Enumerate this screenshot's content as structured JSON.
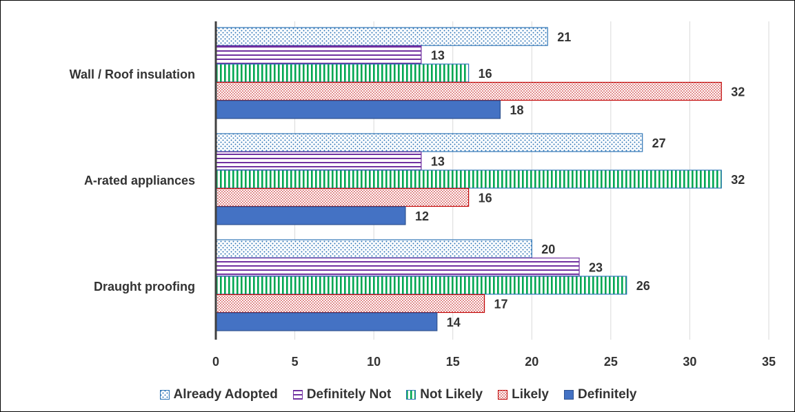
{
  "chart_data": {
    "type": "bar",
    "orientation": "horizontal",
    "title": "",
    "xlabel": "",
    "ylabel": "",
    "xlim": [
      0,
      35
    ],
    "x_ticks": [
      "0",
      "5",
      "10",
      "15",
      "20",
      "25",
      "30",
      "35"
    ],
    "grid": "vertical gridlines on",
    "legend_position": "bottom",
    "categories": [
      "Wall / Roof insulation",
      "A-rated appliances",
      "Draught proofing"
    ],
    "series": [
      {
        "name": "Already Adopted",
        "values": [
          21,
          27,
          20
        ],
        "color": "#2E75B6",
        "pattern": "dots"
      },
      {
        "name": "Definitely Not",
        "values": [
          13,
          13,
          23
        ],
        "color": "#7030A0",
        "pattern": "horizontal-lines"
      },
      {
        "name": "Not Likely",
        "values": [
          16,
          32,
          26
        ],
        "color": "#00A651",
        "pattern": "vertical-lines"
      },
      {
        "name": "Likely",
        "values": [
          32,
          16,
          17
        ],
        "color": "#C00000",
        "pattern": "dots"
      },
      {
        "name": "Definitely",
        "values": [
          18,
          12,
          14
        ],
        "color": "#4472C4",
        "pattern": "solid"
      }
    ]
  }
}
